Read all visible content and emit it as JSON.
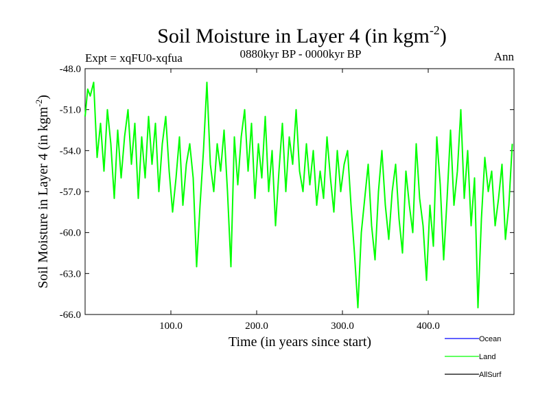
{
  "chart_data": {
    "type": "line",
    "title": "Soil Moisture in Layer 4 (in kgm",
    "title_sup": "-2",
    "title_close": ")",
    "subtitle_left": "Expt = xqFU0-xqfua",
    "subtitle_center": "0880kyr BP - 0000kyr BP",
    "subtitle_right": "Ann",
    "xlabel": "Time (in years since start)",
    "ylabel": "Soil Moisture in Layer 4 (in kgm",
    "ylabel_sup": "-2",
    "ylabel_close": ")",
    "xlim": [
      0,
      500
    ],
    "ylim": [
      -66,
      -48
    ],
    "x_ticks": [
      100,
      200,
      300,
      400
    ],
    "x_tick_labels": [
      "100.0",
      "200.0",
      "300.0",
      "400.0"
    ],
    "y_ticks": [
      -48,
      -51,
      -54,
      -57,
      -60,
      -63,
      -66
    ],
    "y_tick_labels": [
      "-48.0",
      "-51.0",
      "-54.0",
      "-57.0",
      "-60.0",
      "-63.0",
      "-66.0"
    ],
    "legend": {
      "placement": "bottom-right",
      "entries": [
        {
          "name": "Ocean",
          "color": "#0000ff"
        },
        {
          "name": "Land",
          "color": "#00ff00"
        },
        {
          "name": "AllSurf",
          "color": "#000000"
        }
      ]
    },
    "series": [
      {
        "name": "Land",
        "color": "#00ff00",
        "x": [
          0,
          3,
          6,
          10,
          14,
          18,
          22,
          26,
          30,
          34,
          38,
          42,
          46,
          50,
          54,
          58,
          62,
          66,
          70,
          74,
          78,
          82,
          86,
          90,
          94,
          98,
          102,
          106,
          110,
          114,
          118,
          122,
          126,
          130,
          134,
          138,
          142,
          146,
          150,
          154,
          158,
          162,
          166,
          170,
          174,
          178,
          182,
          186,
          190,
          194,
          198,
          202,
          206,
          210,
          214,
          218,
          222,
          226,
          230,
          234,
          238,
          242,
          246,
          250,
          254,
          258,
          262,
          266,
          270,
          274,
          278,
          282,
          286,
          290,
          294,
          298,
          302,
          306,
          310,
          314,
          318,
          322,
          326,
          330,
          334,
          338,
          342,
          346,
          350,
          354,
          358,
          362,
          366,
          370,
          374,
          378,
          382,
          386,
          390,
          394,
          398,
          402,
          406,
          410,
          414,
          418,
          422,
          426,
          430,
          434,
          438,
          442,
          446,
          450,
          454,
          458,
          462,
          466,
          470,
          474,
          478,
          482,
          486,
          490,
          494,
          498
        ],
        "values": [
          -51.5,
          -49.5,
          -50.0,
          -49.0,
          -54.5,
          -52.0,
          -55.5,
          -51.0,
          -53.5,
          -57.5,
          -52.5,
          -56.0,
          -53.0,
          -51.0,
          -55.0,
          -52.0,
          -57.5,
          -53.0,
          -56.0,
          -51.5,
          -55.0,
          -52.0,
          -57.0,
          -53.5,
          -51.5,
          -55.5,
          -58.5,
          -56.0,
          -53.0,
          -58.0,
          -55.0,
          -53.5,
          -56.0,
          -62.5,
          -58.0,
          -54.0,
          -49.0,
          -55.0,
          -57.0,
          -53.5,
          -55.5,
          -52.5,
          -57.0,
          -62.5,
          -53.0,
          -56.5,
          -53.0,
          -51.0,
          -55.5,
          -52.0,
          -57.5,
          -53.5,
          -56.0,
          -51.5,
          -57.0,
          -54.0,
          -59.5,
          -55.5,
          -52.0,
          -57.0,
          -53.0,
          -55.0,
          -51.0,
          -55.5,
          -57.0,
          -53.5,
          -56.5,
          -54.0,
          -58.0,
          -55.5,
          -57.5,
          -53.0,
          -56.0,
          -58.5,
          -54.0,
          -57.0,
          -55.0,
          -54.0,
          -58.0,
          -61.5,
          -65.5,
          -60.0,
          -57.5,
          -55.0,
          -59.5,
          -62.0,
          -57.0,
          -54.0,
          -58.0,
          -60.5,
          -57.0,
          -55.0,
          -59.0,
          -61.5,
          -55.5,
          -58.0,
          -60.0,
          -53.5,
          -57.5,
          -59.5,
          -63.5,
          -58.0,
          -61.0,
          -53.0,
          -56.5,
          -62.0,
          -57.5,
          -52.5,
          -58.0,
          -55.5,
          -51.0,
          -57.5,
          -54.0,
          -59.5,
          -56.0,
          -65.5,
          -59.0,
          -54.5,
          -57.0,
          -55.5,
          -59.5,
          -57.5,
          -55.0,
          -60.5,
          -58.0,
          -53.5
        ]
      }
    ]
  }
}
